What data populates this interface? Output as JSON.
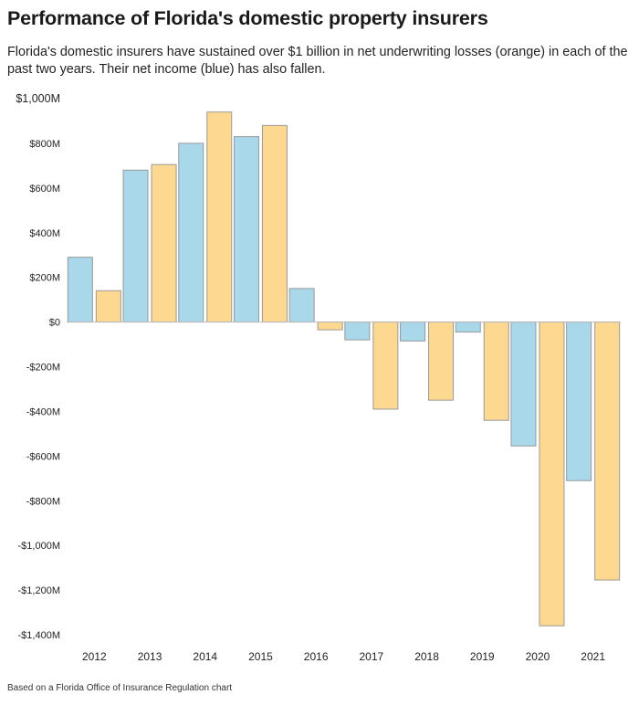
{
  "header": {
    "title": "Performance of Florida's domestic property insurers",
    "subtitle": "Florida's domestic insurers have sustained over $1 billion in net underwriting losses (orange) in each of the past two years. Their net income (blue) has also fallen."
  },
  "footnote": "Based on a Florida Office of Insurance Regulation chart",
  "chart_data": {
    "type": "bar",
    "title": "Performance of Florida's domestic property insurers",
    "xlabel": "",
    "ylabel": "",
    "categories": [
      "2012",
      "2013",
      "2014",
      "2015",
      "2016",
      "2017",
      "2018",
      "2019",
      "2020",
      "2021"
    ],
    "series": [
      {
        "name": "",
        "color": "#a8d8ea",
        "values": [
          290,
          680,
          800,
          830,
          150,
          -80,
          -85,
          -45,
          -555,
          -710
        ]
      },
      {
        "name": "",
        "color": "#fdd891",
        "values": [
          140,
          705,
          940,
          880,
          -35,
          -390,
          -350,
          -440,
          -1360,
          -1155
        ]
      }
    ],
    "ylim": [
      -1400,
      1000
    ],
    "yticks": [
      1000,
      800,
      600,
      400,
      200,
      0,
      -200,
      -400,
      -600,
      -800,
      -1000,
      -1200,
      -1400
    ],
    "ytick_labels": [
      "$1,000M",
      "$800M",
      "$600M",
      "$400M",
      "$200M",
      "$0",
      "-$200M",
      "-$400M",
      "-$600M",
      "-$800M",
      "-$1,000M",
      "-$1,200M",
      "-$1,400M"
    ],
    "grid": false,
    "legend": "none",
    "bar_stroke": "#9a9a9a"
  }
}
